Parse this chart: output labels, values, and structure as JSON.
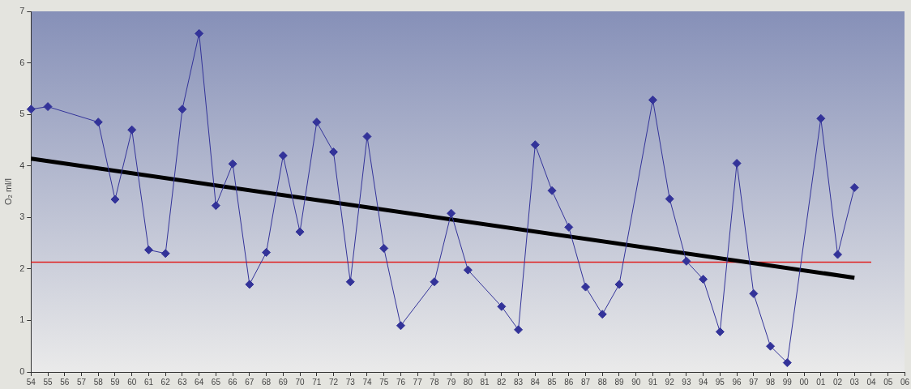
{
  "chart_data": {
    "type": "line",
    "ylabel": "O₂ ml/l",
    "categories": [
      "54",
      "55",
      "56",
      "57",
      "58",
      "59",
      "60",
      "61",
      "62",
      "63",
      "64",
      "65",
      "66",
      "67",
      "68",
      "69",
      "70",
      "71",
      "72",
      "73",
      "74",
      "75",
      "76",
      "77",
      "78",
      "79",
      "80",
      "81",
      "82",
      "83",
      "84",
      "85",
      "86",
      "87",
      "88",
      "89",
      "90",
      "91",
      "92",
      "93",
      "94",
      "95",
      "96",
      "97",
      "98",
      "99",
      "00",
      "01",
      "02",
      "03",
      "04",
      "05",
      "06"
    ],
    "series": [
      {
        "color": "#333399",
        "values": [
          5.1,
          5.15,
          null,
          null,
          4.85,
          3.35,
          4.7,
          2.37,
          2.3,
          5.1,
          6.57,
          3.23,
          4.04,
          1.7,
          2.32,
          4.2,
          2.72,
          4.85,
          4.27,
          1.75,
          4.57,
          2.4,
          0.9,
          null,
          1.75,
          3.08,
          1.98,
          null,
          1.27,
          0.82,
          4.41,
          3.52,
          2.81,
          1.65,
          1.12,
          1.7,
          null,
          5.28,
          3.36,
          2.15,
          1.8,
          0.78,
          4.05,
          1.52,
          0.5,
          0.18,
          null,
          4.92,
          2.28,
          3.58,
          null,
          null,
          null
        ]
      },
      {
        "type": "line",
        "marker": "none",
        "color": "#000000",
        "values": [
          4.14,
          null,
          null,
          null,
          null,
          null,
          null,
          null,
          null,
          null,
          null,
          null,
          null,
          null,
          null,
          null,
          null,
          null,
          null,
          null,
          null,
          null,
          null,
          null,
          null,
          null,
          null,
          null,
          null,
          null,
          null,
          null,
          null,
          null,
          null,
          null,
          null,
          null,
          null,
          null,
          null,
          null,
          null,
          null,
          null,
          null,
          null,
          null,
          null,
          1.83,
          null,
          null,
          null
        ]
      },
      {
        "type": "line",
        "marker": "none",
        "color": "#e02020",
        "values": [
          2.13,
          null,
          null,
          null,
          null,
          null,
          null,
          null,
          null,
          null,
          null,
          null,
          null,
          null,
          null,
          null,
          null,
          null,
          null,
          null,
          null,
          null,
          null,
          null,
          null,
          null,
          null,
          null,
          null,
          null,
          null,
          null,
          null,
          null,
          null,
          null,
          null,
          null,
          null,
          null,
          null,
          null,
          null,
          null,
          null,
          null,
          null,
          null,
          null,
          null,
          2.13,
          null,
          null
        ]
      }
    ],
    "ylim": [
      0,
      7
    ],
    "yticks": [
      0,
      1,
      2,
      3,
      4,
      5,
      6,
      7
    ],
    "marker": "diamond",
    "line_style": "solid",
    "grid": false,
    "legend": false
  }
}
